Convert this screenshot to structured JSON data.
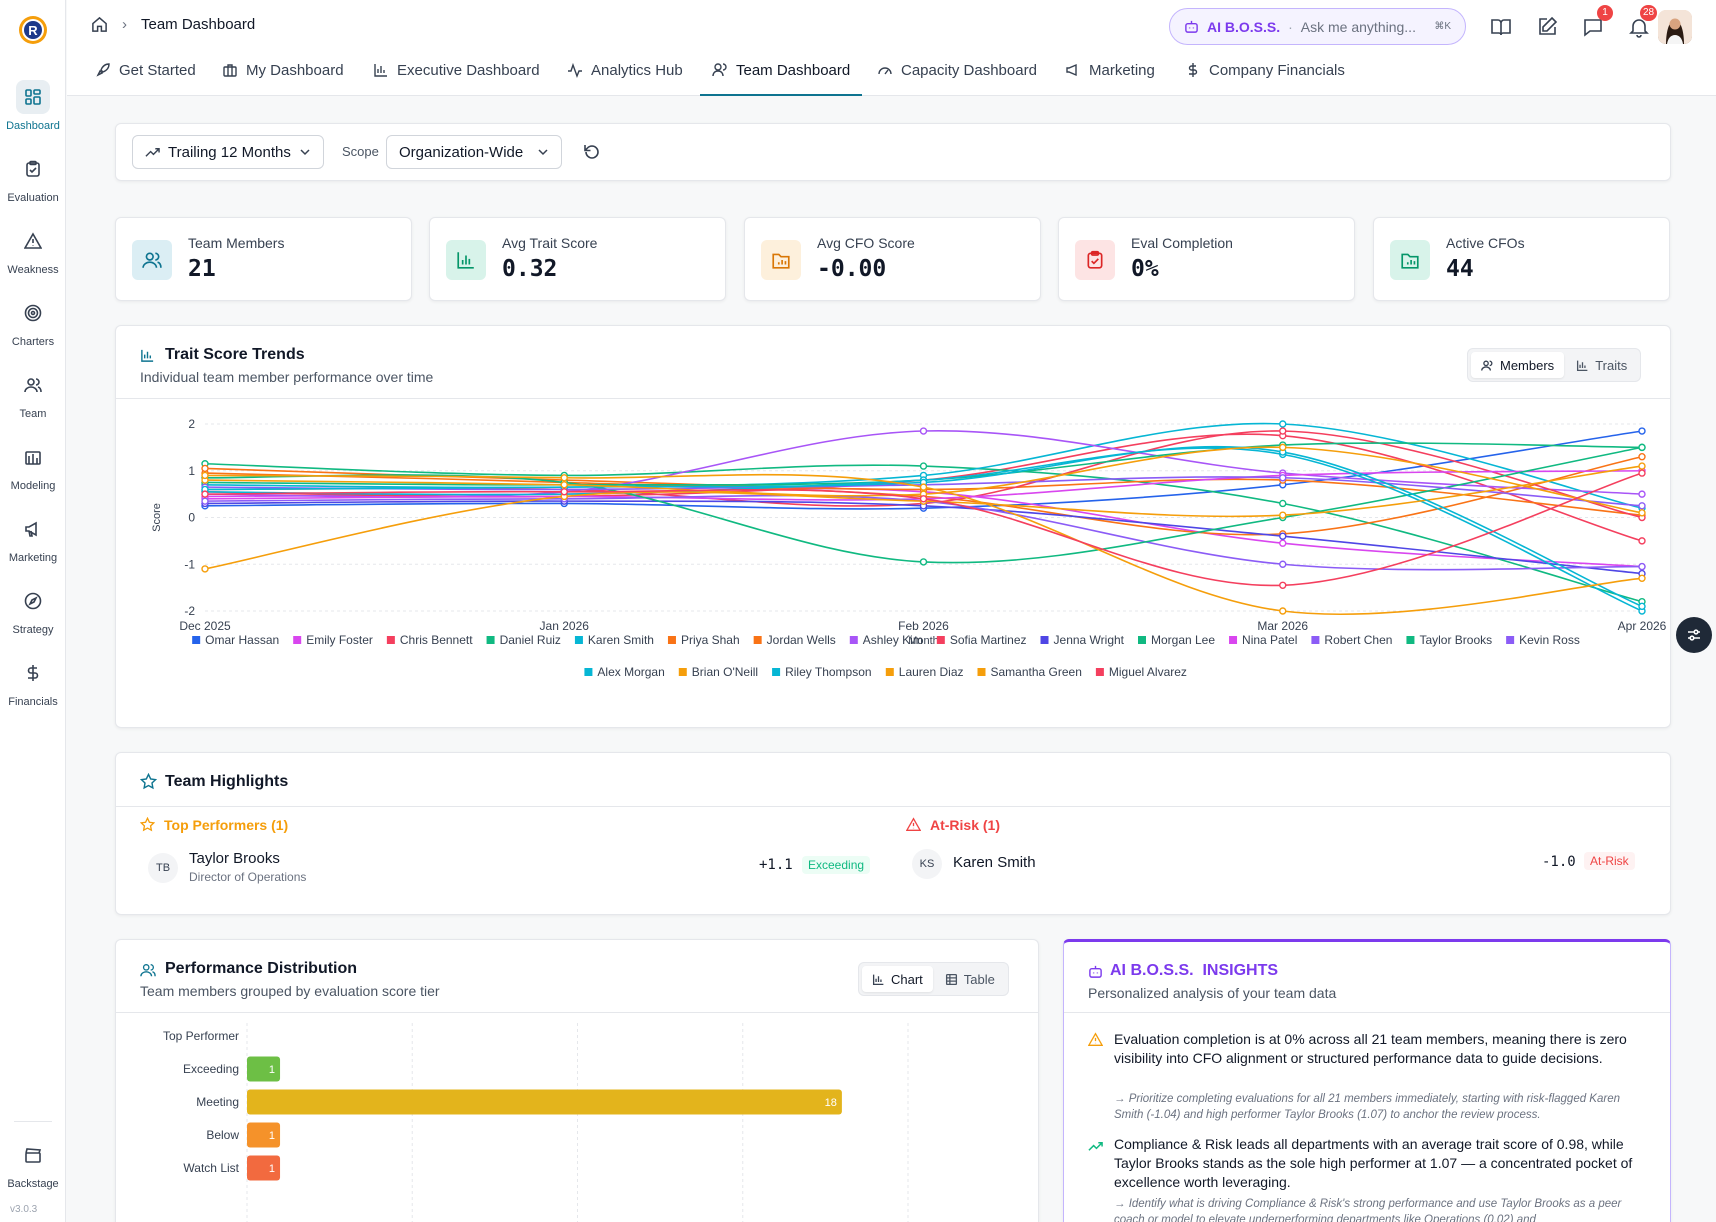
{
  "sidebar": {
    "items": [
      {
        "label": "Dashboard",
        "icon": "grid-icon"
      },
      {
        "label": "Evaluation",
        "icon": "clipboard-icon"
      },
      {
        "label": "Weakness",
        "icon": "warning-icon"
      },
      {
        "label": "Charters",
        "icon": "target-icon"
      },
      {
        "label": "Team",
        "icon": "users-icon"
      },
      {
        "label": "Modeling",
        "icon": "building-icon"
      },
      {
        "label": "Marketing",
        "icon": "megaphone-icon"
      },
      {
        "label": "Strategy",
        "icon": "compass-icon"
      },
      {
        "label": "Financials",
        "icon": "dollar-icon"
      }
    ],
    "backstage": "Backstage",
    "version": "v3.0.3"
  },
  "header": {
    "breadcrumb": "Team Dashboard",
    "ai_brand": "AI B.O.S.S.",
    "ai_placeholder": "Ask me anything...",
    "ai_shortcut": "⌘K",
    "messages_badge": "1",
    "notifications_badge": "28"
  },
  "tabs": [
    {
      "label": "Get Started"
    },
    {
      "label": "My Dashboard"
    },
    {
      "label": "Executive Dashboard"
    },
    {
      "label": "Analytics Hub"
    },
    {
      "label": "Team Dashboard"
    },
    {
      "label": "Capacity Dashboard"
    },
    {
      "label": "Marketing"
    },
    {
      "label": "Company Financials"
    }
  ],
  "filters": {
    "period": "Trailing 12 Months",
    "scope_label": "Scope",
    "scope": "Organization-Wide"
  },
  "stats": [
    {
      "label": "Team Members",
      "value": "21"
    },
    {
      "label": "Avg Trait Score",
      "value": "0.32"
    },
    {
      "label": "Avg CFO Score",
      "value": "-0.00"
    },
    {
      "label": "Eval Completion",
      "value": "0%"
    },
    {
      "label": "Active CFOs",
      "value": "44"
    }
  ],
  "trends": {
    "title": "Trait Score Trends",
    "subtitle": "Individual team member performance over time",
    "toggle_members": "Members",
    "toggle_traits": "Traits"
  },
  "chart_data": {
    "type": "line",
    "xlabel": "Month",
    "ylabel": "Score",
    "ylim": [
      -2,
      2
    ],
    "yticks": [
      "2",
      "1",
      "0",
      "-1",
      "-2"
    ],
    "x": [
      "Dec 2025",
      "Jan 2026",
      "Feb 2026",
      "Mar 2026",
      "Apr 2026"
    ],
    "grid": true,
    "legend": "bottom",
    "series": [
      {
        "name": "Omar Hassan",
        "color": "#2563eb",
        "values": [
          0.25,
          0.3,
          0.2,
          0.7,
          1.85
        ]
      },
      {
        "name": "Emily Foster",
        "color": "#d946ef",
        "values": [
          0.45,
          0.5,
          0.55,
          -0.55,
          -1.05
        ]
      },
      {
        "name": "Chris Bennett",
        "color": "#f43f5e",
        "values": [
          0.55,
          0.45,
          0.8,
          1.75,
          -0.5
        ]
      },
      {
        "name": "Daniel Ruiz",
        "color": "#10b981",
        "values": [
          1.15,
          0.9,
          1.1,
          0.3,
          -1.8
        ]
      },
      {
        "name": "Karen Smith",
        "color": "#06b6d4",
        "values": [
          0.7,
          0.65,
          0.9,
          2.0,
          0.2
        ]
      },
      {
        "name": "Priya Shah",
        "color": "#f97316",
        "values": [
          0.95,
          0.75,
          0.45,
          -0.35,
          1.3
        ]
      },
      {
        "name": "Jordan Wells",
        "color": "#f97316",
        "values": [
          1.05,
          0.8,
          0.6,
          0.8,
          0.05
        ]
      },
      {
        "name": "Ashley Kim",
        "color": "#a855f7",
        "values": [
          0.5,
          0.55,
          1.85,
          0.95,
          0.5
        ]
      },
      {
        "name": "Sofia Martinez",
        "color": "#f43f5e",
        "values": [
          0.6,
          0.6,
          0.3,
          1.85,
          0.0
        ]
      },
      {
        "name": "Jenna Wright",
        "color": "#4f46e5",
        "values": [
          0.3,
          0.35,
          0.25,
          -0.4,
          -1.2
        ]
      },
      {
        "name": "Morgan Lee",
        "color": "#10b981",
        "values": [
          0.75,
          0.7,
          0.8,
          1.55,
          1.5
        ]
      },
      {
        "name": "Nina Patel",
        "color": "#d946ef",
        "values": [
          0.4,
          0.45,
          0.4,
          0.9,
          1.0
        ]
      },
      {
        "name": "Robert Chen",
        "color": "#8b5cf6",
        "values": [
          0.35,
          0.4,
          0.35,
          -1.0,
          -1.05
        ]
      },
      {
        "name": "Taylor Brooks",
        "color": "#10b981",
        "values": [
          0.85,
          0.75,
          -0.95,
          0.0,
          1.5
        ]
      },
      {
        "name": "Kevin Ross",
        "color": "#8b5cf6",
        "values": [
          0.65,
          0.6,
          0.7,
          0.85,
          0.25
        ]
      },
      {
        "name": "Alex Morgan",
        "color": "#06b6d4",
        "values": [
          0.55,
          0.5,
          0.8,
          1.35,
          -2.0
        ]
      },
      {
        "name": "Brian O'Neill",
        "color": "#f59e0b",
        "values": [
          -1.1,
          0.45,
          0.35,
          0.05,
          1.1
        ]
      },
      {
        "name": "Riley Thompson",
        "color": "#06b6d4",
        "values": [
          0.6,
          0.65,
          0.75,
          1.4,
          -1.9
        ]
      },
      {
        "name": "Lauren Diaz",
        "color": "#f59e0b",
        "values": [
          0.8,
          0.7,
          0.5,
          1.5,
          0.1
        ]
      },
      {
        "name": "Samantha Green",
        "color": "#f59e0b",
        "values": [
          0.9,
          0.85,
          0.65,
          -2.0,
          -1.3
        ]
      },
      {
        "name": "Miguel Alvarez",
        "color": "#f43f5e",
        "values": [
          0.5,
          0.55,
          0.4,
          -1.45,
          0.95
        ]
      }
    ]
  },
  "highlights": {
    "title": "Team Highlights",
    "top_title": "Top Performers (1)",
    "risk_title": "At-Risk (1)",
    "top": {
      "initials": "TB",
      "name": "Taylor Brooks",
      "role": "Director of Operations",
      "score": "+1.1",
      "tag": "Exceeding"
    },
    "risk": {
      "initials": "KS",
      "name": "Karen Smith",
      "score": "-1.0",
      "tag": "At-Risk"
    }
  },
  "distribution": {
    "title": "Performance Distribution",
    "subtitle": "Team members grouped by evaluation score tier",
    "toggle_chart": "Chart",
    "toggle_table": "Table",
    "chart": {
      "type": "bar",
      "categories": [
        "Top Performer",
        "Exceeding",
        "Meeting",
        "Below",
        "Watch List"
      ],
      "values": [
        0,
        1,
        18,
        1,
        1
      ],
      "colors": [
        "#6dbf45",
        "#6dbf45",
        "#e3b41c",
        "#f5922a",
        "#f26a3f"
      ],
      "xmax": 20
    }
  },
  "insights": {
    "brand": "AI B.O.S.S.",
    "title_rest": "INSIGHTS",
    "subtitle": "Personalized analysis of your team data",
    "items": [
      {
        "icon": "warning-icon",
        "text": "Evaluation completion is at 0% across all 21 team members, meaning there is zero visibility into CFO alignment or structured performance data to guide decisions.",
        "action": "→ Prioritize completing evaluations for all 21 members immediately, starting with risk-flagged Karen Smith (-1.04) and high performer Taylor Brooks (1.07) to anchor the review process."
      },
      {
        "icon": "trend-up-icon",
        "text": "Compliance & Risk leads all departments with an average trait score of 0.98, while Taylor Brooks stands as the sole high performer at 1.07 — a concentrated pocket of excellence worth leveraging.",
        "action": "→ Identify what is driving Compliance & Risk's strong performance and use Taylor Brooks as a peer coach or model to elevate underperforming departments like Operations (0.02) and"
      }
    ]
  }
}
